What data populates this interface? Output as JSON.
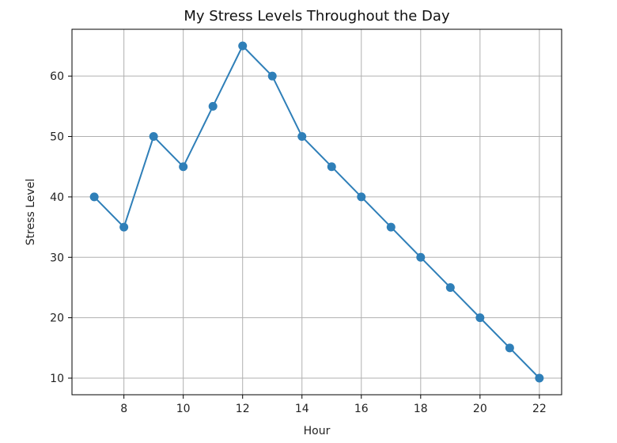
{
  "chart_data": {
    "type": "line",
    "title": "My Stress Levels Throughout the Day",
    "xlabel": "Hour",
    "ylabel": "Stress Level",
    "x": [
      7,
      8,
      9,
      10,
      11,
      12,
      13,
      14,
      15,
      16,
      17,
      18,
      19,
      20,
      21,
      22
    ],
    "series": [
      {
        "values": [
          40,
          35,
          50,
          45,
          55,
          65,
          60,
          50,
          45,
          40,
          35,
          30,
          25,
          20,
          15,
          10
        ],
        "color": "#2f7fb8"
      }
    ],
    "xlim": [
      6.25,
      22.75
    ],
    "ylim": [
      7.25,
      67.75
    ],
    "xticks": [
      8,
      10,
      12,
      14,
      16,
      18,
      20,
      22
    ],
    "yticks": [
      10,
      20,
      30,
      40,
      50,
      60
    ],
    "grid": true,
    "marker": "circle"
  }
}
